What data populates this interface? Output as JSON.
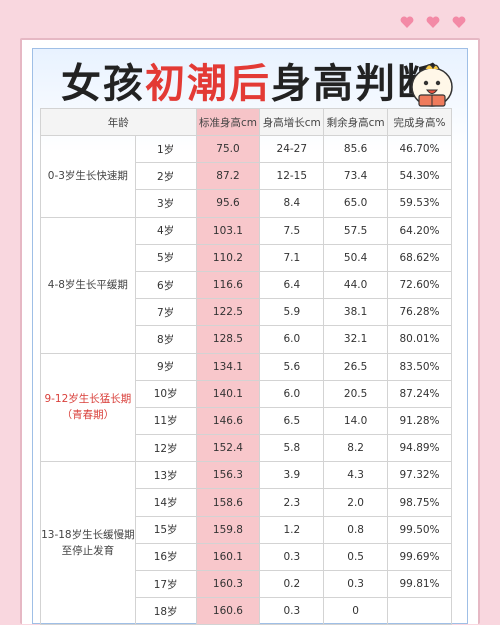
{
  "title": {
    "part1": "女孩",
    "part2": "初潮后",
    "part3": "身高判断"
  },
  "table": {
    "headers": [
      "年龄",
      "标准身高cm",
      "身高增长cm",
      "剩余身高cm",
      "完成身高%"
    ],
    "groups": [
      {
        "label": "0-3岁生长快速期",
        "rows": [
          {
            "age": "1岁",
            "std": "75.0",
            "inc": "24-27",
            "rem": "85.6",
            "pct": "46.70%"
          },
          {
            "age": "2岁",
            "std": "87.2",
            "inc": "12-15",
            "rem": "73.4",
            "pct": "54.30%"
          },
          {
            "age": "3岁",
            "std": "95.6",
            "inc": "8.4",
            "rem": "65.0",
            "pct": "59.53%"
          }
        ]
      },
      {
        "label": "4-8岁生长平缓期",
        "rows": [
          {
            "age": "4岁",
            "std": "103.1",
            "inc": "7.5",
            "rem": "57.5",
            "pct": "64.20%"
          },
          {
            "age": "5岁",
            "std": "110.2",
            "inc": "7.1",
            "rem": "50.4",
            "pct": "68.62%"
          },
          {
            "age": "6岁",
            "std": "116.6",
            "inc": "6.4",
            "rem": "44.0",
            "pct": "72.60%"
          },
          {
            "age": "7岁",
            "std": "122.5",
            "inc": "5.9",
            "rem": "38.1",
            "pct": "76.28%"
          },
          {
            "age": "8岁",
            "std": "128.5",
            "inc": "6.0",
            "rem": "32.1",
            "pct": "80.01%"
          }
        ]
      },
      {
        "label": "9-12岁生长猛长期（青春期）",
        "rows": [
          {
            "age": "9岁",
            "std": "134.1",
            "inc": "5.6",
            "rem": "26.5",
            "pct": "83.50%"
          },
          {
            "age": "10岁",
            "std": "140.1",
            "inc": "6.0",
            "rem": "20.5",
            "pct": "87.24%"
          },
          {
            "age": "11岁",
            "std": "146.6",
            "inc": "6.5",
            "rem": "14.0",
            "pct": "91.28%"
          },
          {
            "age": "12岁",
            "std": "152.4",
            "inc": "5.8",
            "rem": "8.2",
            "pct": "94.89%"
          }
        ]
      },
      {
        "label": "13-18岁生长缓慢期至停止发育",
        "rows": [
          {
            "age": "13岁",
            "std": "156.3",
            "inc": "3.9",
            "rem": "4.3",
            "pct": "97.32%"
          },
          {
            "age": "14岁",
            "std": "158.6",
            "inc": "2.3",
            "rem": "2.0",
            "pct": "98.75%"
          },
          {
            "age": "15岁",
            "std": "159.8",
            "inc": "1.2",
            "rem": "0.8",
            "pct": "99.50%"
          },
          {
            "age": "16岁",
            "std": "160.1",
            "inc": "0.3",
            "rem": "0.5",
            "pct": "99.69%"
          },
          {
            "age": "17岁",
            "std": "160.3",
            "inc": "0.2",
            "rem": "0.3",
            "pct": "99.81%"
          },
          {
            "age": "18岁",
            "std": "160.6",
            "inc": "0.3",
            "rem": "0",
            "pct": ""
          }
        ]
      }
    ]
  },
  "colors": {
    "accent_red": "#e33a35",
    "highlight_pink": "#f8c7cb",
    "background": "#f9d7df"
  },
  "icons": {
    "hearts": "heart-icon",
    "mascot": "chick-mascot-icon"
  }
}
